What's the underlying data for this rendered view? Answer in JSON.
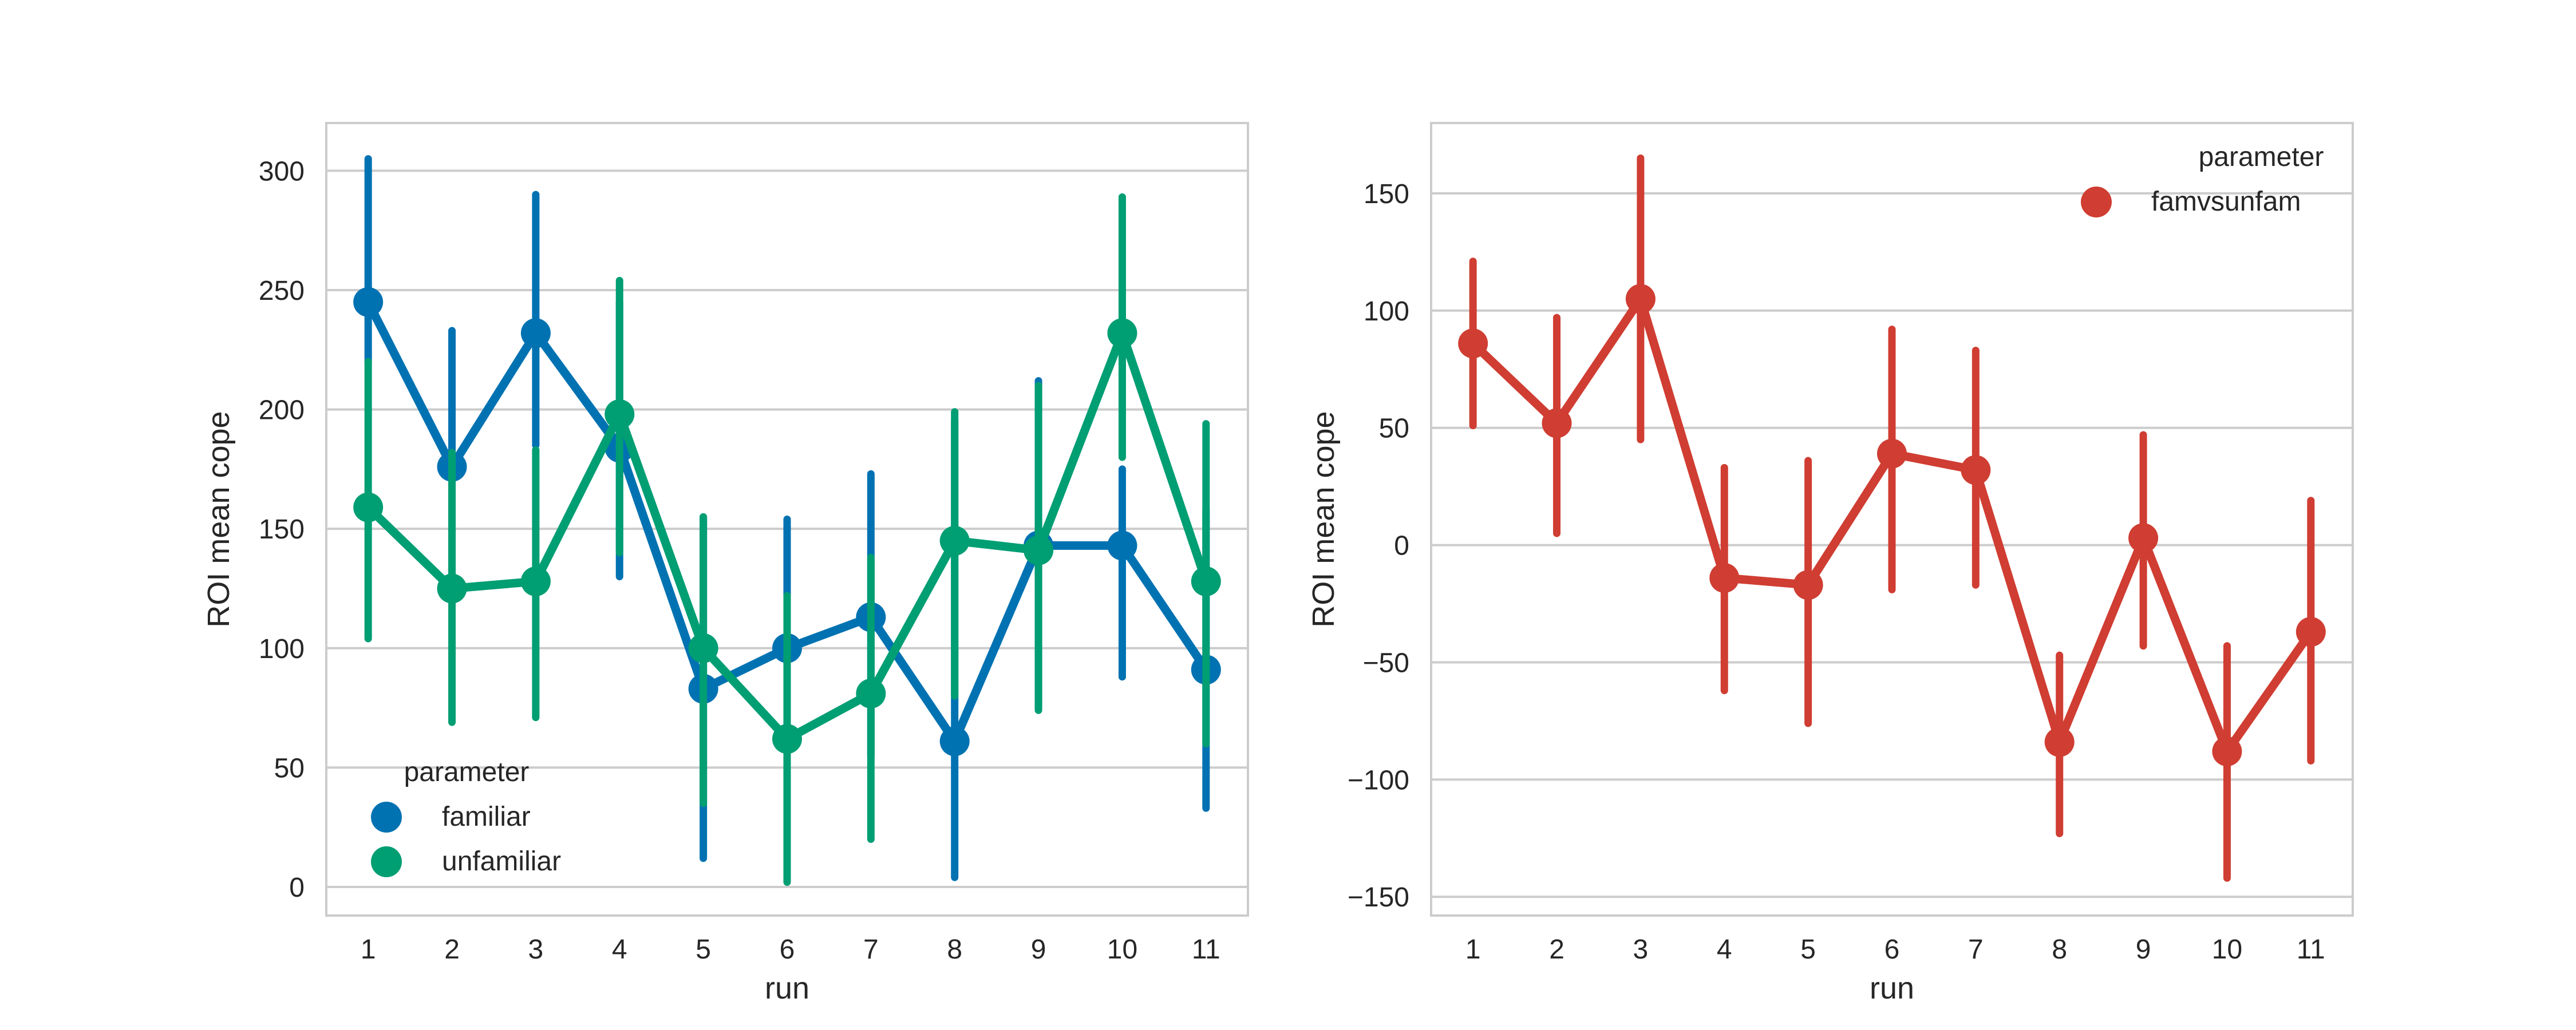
{
  "chart_data": [
    {
      "type": "line",
      "categories": [
        "1",
        "2",
        "3",
        "4",
        "5",
        "6",
        "7",
        "8",
        "9",
        "10",
        "11"
      ],
      "xlabel": "run",
      "ylabel": "ROI mean cope",
      "ylim": [
        -12,
        320
      ],
      "yticks": [
        "0",
        "50",
        "100",
        "150",
        "200",
        "250",
        "300"
      ],
      "grid": true,
      "legend": {
        "title": "parameter",
        "placement": "lower-left"
      },
      "series": [
        {
          "name": "familiar",
          "color": "#0072b2",
          "values": [
            245,
            176,
            232,
            184,
            83,
            100,
            113,
            61,
            143,
            143,
            91
          ],
          "ci_low": [
            220,
            120,
            185,
            130,
            12,
            45,
            55,
            4,
            75,
            88,
            33
          ],
          "ci_high": [
            305,
            233,
            290,
            245,
            155,
            154,
            173,
            195,
            212,
            175,
            158
          ]
        },
        {
          "name": "unfamiliar",
          "color": "#009e73",
          "values": [
            159,
            125,
            128,
            198,
            100,
            62,
            81,
            145,
            141,
            232,
            128
          ],
          "ci_low": [
            104,
            69,
            71,
            140,
            35,
            2,
            20,
            80,
            74,
            180,
            60
          ],
          "ci_high": [
            220,
            182,
            183,
            254,
            155,
            122,
            138,
            199,
            210,
            289,
            194
          ]
        }
      ]
    },
    {
      "type": "line",
      "categories": [
        "1",
        "2",
        "3",
        "4",
        "5",
        "6",
        "7",
        "8",
        "9",
        "10",
        "11"
      ],
      "xlabel": "run",
      "ylabel": "ROI mean cope",
      "ylim": [
        -158,
        180
      ],
      "yticks": [
        "−150",
        "−100",
        "−50",
        "0",
        "50",
        "100",
        "150"
      ],
      "grid": true,
      "legend": {
        "title": "parameter",
        "placement": "top-right"
      },
      "series": [
        {
          "name": "famvsunfam",
          "color": "#d03d32",
          "values": [
            86,
            52,
            105,
            -14,
            -17,
            39,
            32,
            -84,
            3,
            -88,
            -37
          ],
          "ci_low": [
            51,
            5,
            45,
            -62,
            -76,
            -19,
            -17,
            -123,
            -43,
            -142,
            -92
          ],
          "ci_high": [
            121,
            97,
            165,
            33,
            36,
            92,
            83,
            -47,
            47,
            -43,
            19
          ]
        }
      ]
    }
  ]
}
